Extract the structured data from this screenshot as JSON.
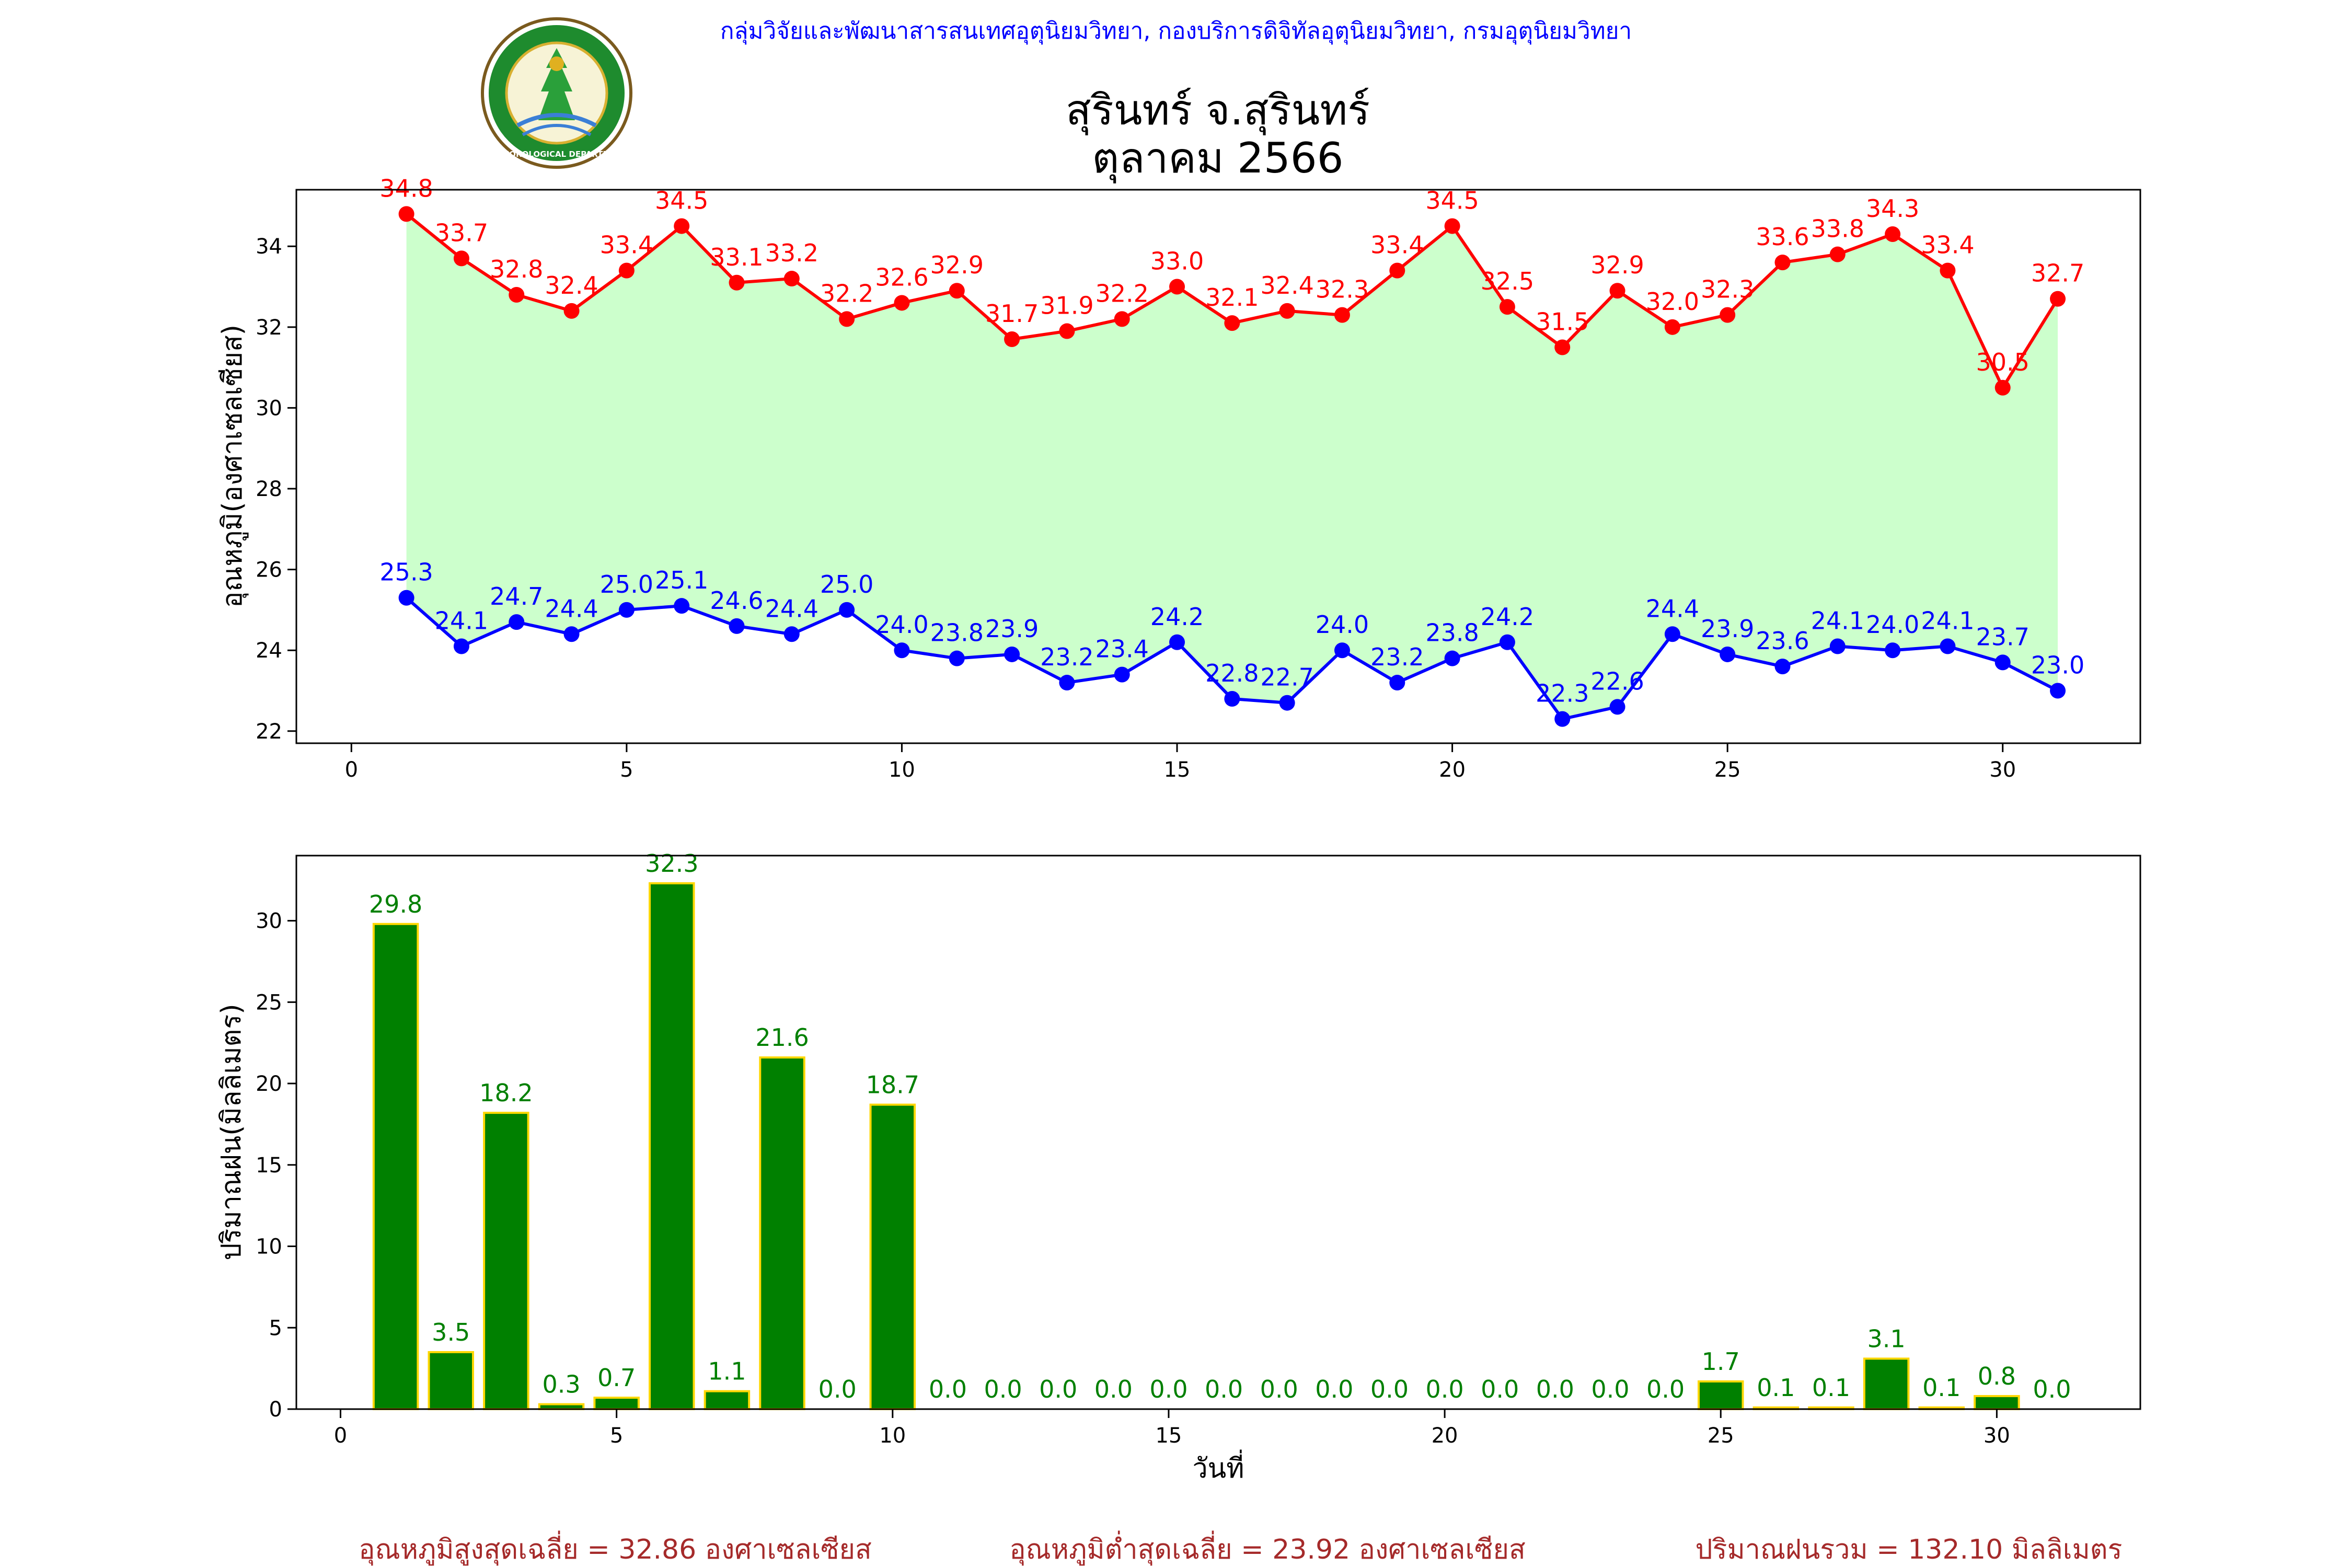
{
  "header": {
    "agency_line": "กลุ่มวิจัยและพัฒนาสารสนเทศอุตุนิยมวิทยา, กองบริการดิจิทัลอุตุนิยมวิทยา, กรมอุตุนิยมวิทยา",
    "title_line1": "สุรินทร์ จ.สุรินทร์",
    "title_line2": "ตุลาคม 2566",
    "logo_text": "METEOROLOGICAL DEPARTMENT"
  },
  "colors": {
    "max_temp": "#ff0000",
    "min_temp": "#0000ff",
    "temp_range_fill": "#ccffcc",
    "rain_bar": "#008000",
    "rain_bar_edge": "#ffd700",
    "rain_label": "#008000",
    "header_text": "#0000ff",
    "footer_text": "#a52a2a"
  },
  "chart_data": [
    {
      "type": "line",
      "x": [
        1,
        2,
        3,
        4,
        5,
        6,
        7,
        8,
        9,
        10,
        11,
        12,
        13,
        14,
        15,
        16,
        17,
        18,
        19,
        20,
        21,
        22,
        23,
        24,
        25,
        26,
        27,
        28,
        29,
        30,
        31
      ],
      "series": [
        {
          "values": [
            34.8,
            33.7,
            32.8,
            32.4,
            33.4,
            34.5,
            33.1,
            33.2,
            32.2,
            32.6,
            32.9,
            31.7,
            31.9,
            32.2,
            33.0,
            32.1,
            32.4,
            32.3,
            33.4,
            34.5,
            32.5,
            31.5,
            32.9,
            32.0,
            32.3,
            33.6,
            33.8,
            34.3,
            33.4,
            30.5,
            32.7
          ],
          "labels": [
            "34.8",
            "33.7",
            "32.8",
            "32.4",
            "33.4",
            "34.5",
            "33.1",
            "33.2",
            "32.2",
            "32.6",
            "32.9",
            "31.7",
            "31.9",
            "32.2",
            "33.0",
            "32.1",
            "32.4",
            "32.3",
            "33.4",
            "34.5",
            "32.5",
            "31.5",
            "32.9",
            "32.0",
            "32.3",
            "33.6",
            "33.8",
            "34.3",
            "33.4",
            "30.5",
            "32.7"
          ]
        },
        {
          "values": [
            25.3,
            24.1,
            24.7,
            24.4,
            25.0,
            25.1,
            24.6,
            24.4,
            25.0,
            24.0,
            23.8,
            23.9,
            23.2,
            23.4,
            24.2,
            22.8,
            22.7,
            24.0,
            23.2,
            23.8,
            24.2,
            22.3,
            22.6,
            24.4,
            23.9,
            23.6,
            24.1,
            24.0,
            24.1,
            23.7,
            23.0
          ],
          "labels": [
            "25.3",
            "24.1",
            "24.7",
            "24.4",
            "25.0",
            "25.1",
            "24.6",
            "24.4",
            "25.0",
            "24.0",
            "23.8",
            "23.9",
            "23.2",
            "23.4",
            "24.2",
            "22.8",
            "22.7",
            "24.0",
            "23.2",
            "23.8",
            "24.2",
            "22.3",
            "22.6",
            "24.4",
            "23.9",
            "23.6",
            "24.1",
            "24.0",
            "24.1",
            "23.7",
            "23.0"
          ]
        }
      ],
      "fill_between": true,
      "xlim": [
        -1,
        32.5
      ],
      "ylim": [
        21.7,
        35.4
      ],
      "xticks": [
        0,
        5,
        10,
        15,
        20,
        25,
        30
      ],
      "yticks": [
        22,
        24,
        26,
        28,
        30,
        32,
        34
      ],
      "ylabel": "อุณหภูมิ(องศาเซลเซียส)",
      "grid": false
    },
    {
      "type": "bar",
      "x": [
        1,
        2,
        3,
        4,
        5,
        6,
        7,
        8,
        9,
        10,
        11,
        12,
        13,
        14,
        15,
        16,
        17,
        18,
        19,
        20,
        21,
        22,
        23,
        24,
        25,
        26,
        27,
        28,
        29,
        30,
        31
      ],
      "values": [
        29.8,
        3.5,
        18.2,
        0.3,
        0.7,
        32.3,
        1.1,
        21.6,
        0.0,
        18.7,
        0.0,
        0.0,
        0.0,
        0.0,
        0.0,
        0.0,
        0.0,
        0.0,
        0.0,
        0.0,
        0.0,
        0.0,
        0.0,
        0.0,
        1.7,
        0.1,
        0.1,
        3.1,
        0.1,
        0.8,
        0.0
      ],
      "labels": [
        "29.8",
        "3.5",
        "18.2",
        "0.3",
        "0.7",
        "32.3",
        "1.1",
        "21.6",
        "0.0",
        "18.7",
        "0.0",
        "0.0",
        "0.0",
        "0.0",
        "0.0",
        "0.0",
        "0.0",
        "0.0",
        "0.0",
        "0.0",
        "0.0",
        "0.0",
        "0.0",
        "0.0",
        "1.7",
        "0.1",
        "0.1",
        "3.1",
        "0.1",
        "0.8",
        "0.0"
      ],
      "xlim": [
        -0.8,
        32.6
      ],
      "ylim": [
        0,
        34
      ],
      "xticks": [
        0,
        5,
        10,
        15,
        20,
        25,
        30
      ],
      "yticks": [
        0,
        5,
        10,
        15,
        20,
        25,
        30
      ],
      "xlabel": "วันที่",
      "ylabel": "ปริมาณฝน(มิลลิเมตร)",
      "grid": false
    }
  ],
  "footer": {
    "avg_max": "อุณหภูมิสูงสุดเฉลี่ย = 32.86 องศาเซลเซียส",
    "avg_min": "อุณหภูมิต่ำสุดเฉลี่ย = 23.92 องศาเซลเซียส",
    "total_rain": "ปริมาณฝนรวม = 132.10 มิลลิเมตร"
  }
}
